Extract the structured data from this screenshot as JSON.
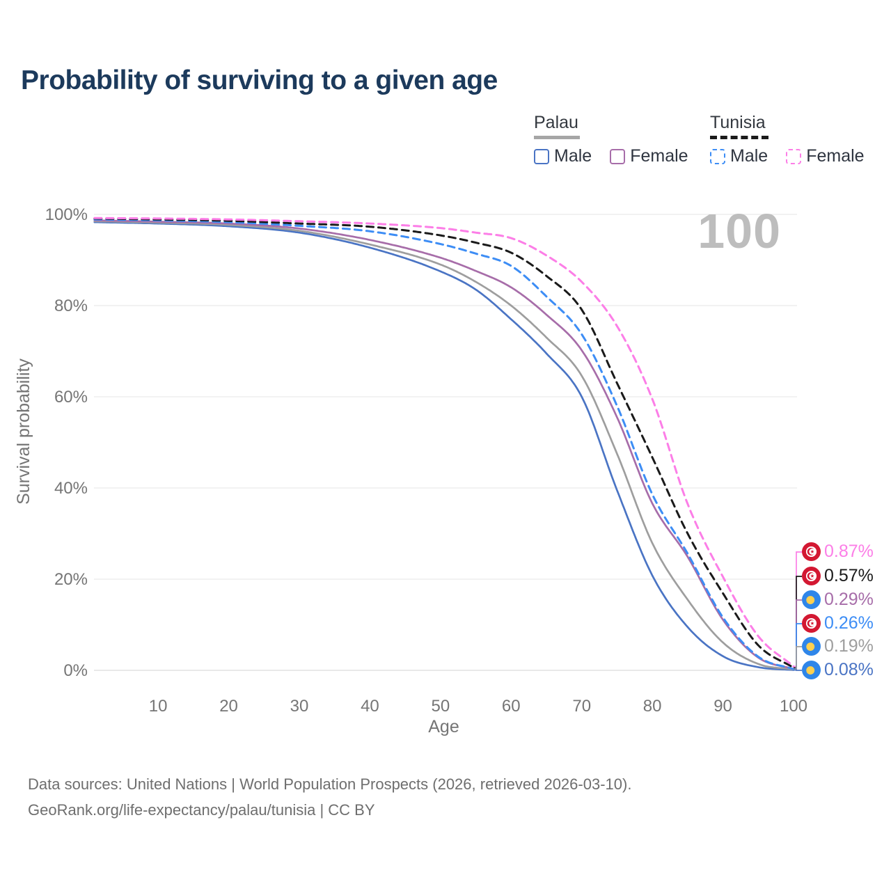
{
  "title": "Probability of surviving to a given age",
  "watermark_age": "100",
  "legend": {
    "groups": [
      {
        "country": "Palau",
        "line_style": "solid",
        "underline_color": "#a6a6a6",
        "items": [
          {
            "label": "Male",
            "color": "#4a74c4"
          },
          {
            "label": "Female",
            "color": "#a76da9"
          }
        ]
      },
      {
        "country": "Tunisia",
        "line_style": "dashed",
        "underline_color": "#1a1a1a",
        "items": [
          {
            "label": "Male",
            "color": "#3d8df5"
          },
          {
            "label": "Female",
            "color": "#fc7ee7"
          }
        ]
      }
    ]
  },
  "axes": {
    "x": {
      "label": "Age",
      "ticks": [
        10,
        20,
        30,
        40,
        50,
        60,
        70,
        80,
        90,
        100
      ],
      "range": [
        1,
        100
      ]
    },
    "y": {
      "label": "Survival probability",
      "ticks": [
        "0%",
        "20%",
        "40%",
        "60%",
        "80%",
        "100%"
      ],
      "tick_values": [
        0,
        20,
        40,
        60,
        80,
        100
      ],
      "range": [
        0,
        100
      ],
      "grid": true
    }
  },
  "chart_data": {
    "type": "line",
    "title": "Probability of surviving to a given age",
    "xlabel": "Age",
    "ylabel": "Survival probability",
    "xlim": [
      1,
      100
    ],
    "ylim": [
      0,
      100
    ],
    "legend_position": "top-right",
    "x_ages": [
      1,
      10,
      20,
      30,
      40,
      50,
      55,
      60,
      65,
      70,
      75,
      80,
      85,
      90,
      95,
      100
    ],
    "series": [
      {
        "name": "Palau Male",
        "country": "Palau",
        "sex": "Male",
        "style": "solid",
        "color": "#4a74c4",
        "values": [
          98.3,
          98.0,
          97.4,
          96.0,
          92.7,
          87.5,
          83.5,
          77.0,
          69.5,
          60.0,
          39.5,
          20.8,
          9.5,
          3.1,
          0.7,
          0.08
        ]
      },
      {
        "name": "Palau",
        "country": "Palau",
        "sex": "Both",
        "style": "solid",
        "color": "#9e9e9e",
        "values": [
          98.5,
          98.2,
          97.7,
          96.4,
          93.4,
          89.0,
          85.2,
          80.0,
          73.0,
          64.6,
          47.5,
          27.9,
          15.5,
          6.1,
          1.4,
          0.19
        ]
      },
      {
        "name": "Palau Female",
        "country": "Palau",
        "sex": "Female",
        "style": "solid",
        "color": "#a76da9",
        "values": [
          98.7,
          98.4,
          98.0,
          96.9,
          94.4,
          90.5,
          87.6,
          84.0,
          78.0,
          70.2,
          55.5,
          36.6,
          24.9,
          11.1,
          2.8,
          0.29
        ]
      },
      {
        "name": "Tunisia Male",
        "country": "Tunisia",
        "sex": "Male",
        "style": "dashed",
        "color": "#3d8df5",
        "values": [
          98.9,
          98.7,
          98.3,
          97.5,
          96.3,
          93.5,
          91.4,
          88.7,
          82.0,
          73.7,
          58.0,
          38.6,
          25.6,
          11.6,
          3.0,
          0.26
        ]
      },
      {
        "name": "Tunisia",
        "country": "Tunisia",
        "sex": "Both",
        "style": "dashed",
        "color": "#1a1a1a",
        "values": [
          99.1,
          98.9,
          98.6,
          98.0,
          97.3,
          95.4,
          93.8,
          91.6,
          86.5,
          79.1,
          63.0,
          46.7,
          30.0,
          16.9,
          5.5,
          0.57
        ]
      },
      {
        "name": "Tunisia Female",
        "country": "Tunisia",
        "sex": "Female",
        "style": "dashed",
        "color": "#fc7ee7",
        "values": [
          99.2,
          99.1,
          98.9,
          98.5,
          98.0,
          97.0,
          96.0,
          94.8,
          91.0,
          85.2,
          75.5,
          59.5,
          36.5,
          20.5,
          7.5,
          0.87
        ]
      }
    ],
    "end_labels": [
      {
        "text": "0.87%",
        "value": 0.87,
        "series": "Tunisia Female",
        "flag": "tunisia",
        "color": "#fc7ee7"
      },
      {
        "text": "0.57%",
        "value": 0.57,
        "series": "Tunisia",
        "flag": "tunisia",
        "color": "#1a1a1a"
      },
      {
        "text": "0.29%",
        "value": 0.29,
        "series": "Palau Female",
        "flag": "palau",
        "color": "#a76da9"
      },
      {
        "text": "0.26%",
        "value": 0.26,
        "series": "Tunisia Male",
        "flag": "tunisia",
        "color": "#3d8df5"
      },
      {
        "text": "0.19%",
        "value": 0.19,
        "series": "Palau",
        "flag": "palau",
        "color": "#9e9e9e"
      },
      {
        "text": "0.08%",
        "value": 0.08,
        "series": "Palau Male",
        "flag": "palau",
        "color": "#4a74c4"
      }
    ]
  },
  "footer": {
    "line1": "Data sources: United Nations | World Population Prospects (2026, retrieved 2026-03-10).",
    "line2": "GeoRank.org/life-expectancy/palau/tunisia | CC BY"
  }
}
